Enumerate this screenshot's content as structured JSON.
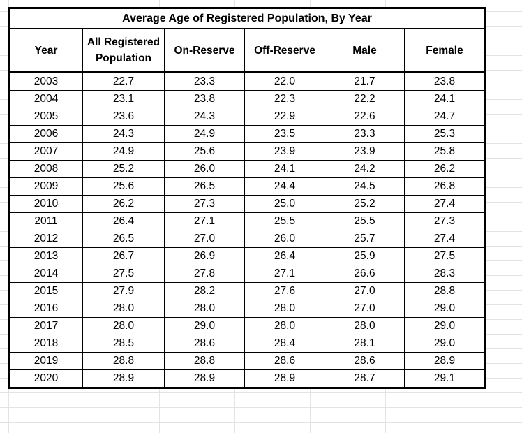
{
  "table": {
    "title": "Average Age of Registered Population, By Year",
    "headers": [
      "Year",
      "All Registered Population",
      "On-Reserve",
      "Off-Reserve",
      "Male",
      "Female"
    ],
    "rows": [
      [
        "2003",
        "22.7",
        "23.3",
        "22.0",
        "21.7",
        "23.8"
      ],
      [
        "2004",
        "23.1",
        "23.8",
        "22.3",
        "22.2",
        "24.1"
      ],
      [
        "2005",
        "23.6",
        "24.3",
        "22.9",
        "22.6",
        "24.7"
      ],
      [
        "2006",
        "24.3",
        "24.9",
        "23.5",
        "23.3",
        "25.3"
      ],
      [
        "2007",
        "24.9",
        "25.6",
        "23.9",
        "23.9",
        "25.8"
      ],
      [
        "2008",
        "25.2",
        "26.0",
        "24.1",
        "24.2",
        "26.2"
      ],
      [
        "2009",
        "25.6",
        "26.5",
        "24.4",
        "24.5",
        "26.8"
      ],
      [
        "2010",
        "26.2",
        "27.3",
        "25.0",
        "25.2",
        "27.4"
      ],
      [
        "2011",
        "26.4",
        "27.1",
        "25.5",
        "25.5",
        "27.3"
      ],
      [
        "2012",
        "26.5",
        "27.0",
        "26.0",
        "25.7",
        "27.4"
      ],
      [
        "2013",
        "26.7",
        "26.9",
        "26.4",
        "25.9",
        "27.5"
      ],
      [
        "2014",
        "27.5",
        "27.8",
        "27.1",
        "26.6",
        "28.3"
      ],
      [
        "2015",
        "27.9",
        "28.2",
        "27.6",
        "27.0",
        "28.8"
      ],
      [
        "2016",
        "28.0",
        "28.0",
        "28.0",
        "27.0",
        "29.0"
      ],
      [
        "2017",
        "28.0",
        "29.0",
        "28.0",
        "28.0",
        "29.0"
      ],
      [
        "2018",
        "28.5",
        "28.6",
        "28.4",
        "28.1",
        "29.0"
      ],
      [
        "2019",
        "28.8",
        "28.8",
        "28.6",
        "28.6",
        "28.9"
      ],
      [
        "2020",
        "28.9",
        "28.9",
        "28.9",
        "28.7",
        "29.1"
      ]
    ]
  }
}
